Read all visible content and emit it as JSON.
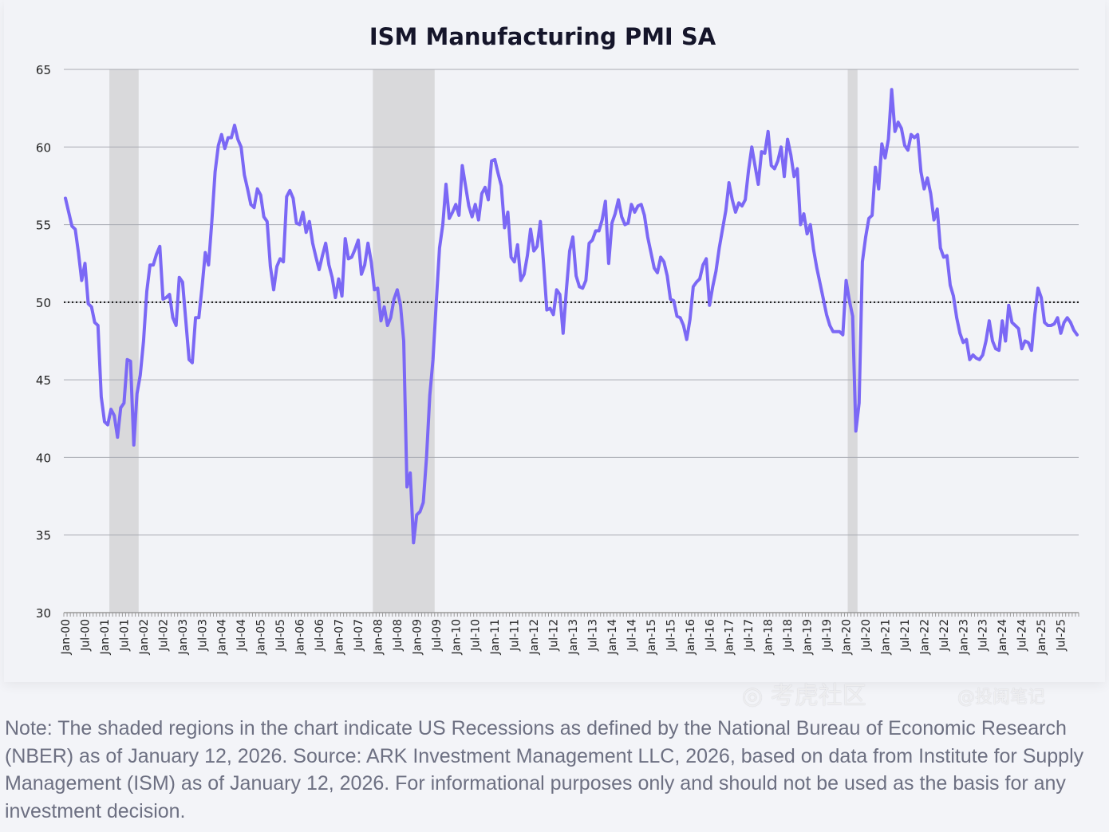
{
  "chart_data": {
    "type": "line",
    "title": "ISM Manufacturing PMI SA",
    "xlabel": "",
    "ylabel": "",
    "ylim": [
      30,
      65
    ],
    "y_ticks": [
      30,
      35,
      40,
      45,
      50,
      55,
      60,
      65
    ],
    "grid": "horizontal",
    "reference_line": {
      "value": 50,
      "style": "dotted"
    },
    "x_tick_labels": [
      "Jan-00",
      "Jul-00",
      "Jan-01",
      "Jul-01",
      "Jan-02",
      "Jul-02",
      "Jan-03",
      "Jul-03",
      "Jan-04",
      "Jul-04",
      "Jan-05",
      "Jul-05",
      "Jan-06",
      "Jul-06",
      "Jan-07",
      "Jul-07",
      "Jan-08",
      "Jul-08",
      "Jan-09",
      "Jul-09",
      "Jan-10",
      "Jul-10",
      "Jan-11",
      "Jul-11",
      "Jan-12",
      "Jul-12",
      "Jan-13",
      "Jul-13",
      "Jan-14",
      "Jul-14",
      "Jan-15",
      "Jul-15",
      "Jan-16",
      "Jul-16",
      "Jan-17",
      "Jul-17",
      "Jan-18",
      "Jul-18",
      "Jan-19",
      "Jul-19",
      "Jan-20",
      "Jul-20",
      "Jan-21",
      "Jul-21",
      "Jan-22",
      "Jul-22",
      "Jan-23",
      "Jul-23",
      "Jan-24",
      "Jul-24",
      "Jan-25",
      "Jul-25"
    ],
    "frequency": "monthly",
    "line_color": "#7b68f5",
    "recession_color": "#d9d9db",
    "recessions": [
      [
        "2001-03",
        "2001-11"
      ],
      [
        "2007-12",
        "2009-06"
      ],
      [
        "2020-02",
        "2020-04"
      ]
    ],
    "values_by_year": {
      "2000": [
        56.7,
        55.8,
        54.9,
        54.7,
        53.2,
        51.4,
        52.5,
        49.9,
        49.7,
        48.7,
        48.5,
        43.9
      ],
      "2001": [
        42.3,
        42.1,
        43.1,
        42.7,
        41.3,
        43.2,
        43.5,
        46.3,
        46.2,
        40.8,
        44.1,
        45.3
      ],
      "2002": [
        47.5,
        50.7,
        52.4,
        52.4,
        53.1,
        53.6,
        50.2,
        50.3,
        50.5,
        49.0,
        48.5,
        51.6
      ],
      "2003": [
        51.3,
        48.8,
        46.3,
        46.1,
        49.0,
        49.0,
        51.0,
        53.2,
        52.4,
        55.2,
        58.4,
        60.1
      ],
      "2004": [
        60.8,
        59.9,
        60.6,
        60.6,
        61.4,
        60.5,
        60.0,
        58.2,
        57.3,
        56.3,
        56.1,
        57.3
      ],
      "2005": [
        56.9,
        55.5,
        55.2,
        52.3,
        50.8,
        52.3,
        52.8,
        52.6,
        56.8,
        57.2,
        56.7,
        55.1
      ],
      "2006": [
        55.0,
        55.8,
        54.5,
        55.2,
        53.8,
        52.9,
        52.1,
        53.0,
        53.8,
        52.4,
        51.6,
        50.3
      ],
      "2007": [
        51.5,
        50.4,
        54.1,
        52.8,
        52.9,
        53.4,
        54.0,
        51.8,
        52.4,
        53.8,
        52.6,
        50.8
      ],
      "2008": [
        50.9,
        48.8,
        49.7,
        48.5,
        49.0,
        50.2,
        50.8,
        49.8,
        47.5,
        38.1,
        39.0,
        34.5
      ],
      "2009": [
        36.3,
        36.5,
        37.1,
        40.0,
        44.0,
        46.3,
        50.0,
        53.5,
        55.0,
        57.6,
        55.4,
        55.8
      ],
      "2010": [
        56.3,
        55.6,
        58.8,
        57.5,
        56.2,
        55.5,
        56.3,
        55.3,
        57.0,
        57.4,
        56.6,
        59.1
      ],
      "2011": [
        59.2,
        58.3,
        57.5,
        54.8,
        55.8,
        52.9,
        52.6,
        53.7,
        51.4,
        51.8,
        53.0,
        54.7
      ],
      "2012": [
        53.3,
        53.6,
        55.2,
        52.5,
        49.5,
        49.6,
        49.2,
        50.8,
        50.5,
        48.0,
        50.8,
        53.3
      ],
      "2013": [
        54.2,
        51.7,
        51.0,
        50.9,
        51.4,
        53.8,
        54.0,
        54.6,
        54.6,
        55.3,
        56.5,
        52.5
      ],
      "2014": [
        55.1,
        55.7,
        56.6,
        55.5,
        55.0,
        55.1,
        56.3,
        55.8,
        56.2,
        56.3,
        55.6,
        54.2
      ],
      "2015": [
        53.2,
        52.2,
        51.9,
        52.9,
        52.6,
        51.7,
        50.2,
        50.1,
        49.1,
        49.0,
        48.5,
        47.6
      ],
      "2016": [
        48.9,
        51.0,
        51.3,
        51.5,
        52.4,
        52.8,
        49.8,
        51.0,
        52.0,
        53.5,
        54.7,
        55.9
      ],
      "2017": [
        57.7,
        56.6,
        55.8,
        56.4,
        56.2,
        56.6,
        58.5,
        60.0,
        58.8,
        57.6,
        59.7,
        59.6
      ],
      "2018": [
        61.0,
        58.8,
        58.6,
        59.1,
        60.0,
        58.1,
        60.5,
        59.5,
        58.1,
        58.6,
        55.0,
        55.7
      ],
      "2019": [
        54.4,
        55.0,
        53.4,
        52.2,
        51.2,
        50.2,
        49.2,
        48.5,
        48.1,
        48.1,
        48.1,
        47.9
      ],
      "2020": [
        51.4,
        50.1,
        49.1,
        41.7,
        43.5,
        52.6,
        54.2,
        55.4,
        55.6,
        58.7,
        57.3,
        60.2
      ],
      "2021": [
        59.3,
        60.5,
        63.7,
        61.0,
        61.6,
        61.2,
        60.1,
        59.8,
        60.8,
        60.6,
        60.8,
        58.4
      ],
      "2022": [
        57.3,
        58.0,
        57.0,
        55.3,
        56.0,
        53.5,
        52.9,
        53.0,
        51.1,
        50.4,
        49.0,
        48.0
      ],
      "2023": [
        47.4,
        47.6,
        46.3,
        46.6,
        46.4,
        46.3,
        46.6,
        47.5,
        48.8,
        47.5,
        47.0,
        46.9
      ],
      "2024": [
        48.8,
        47.5,
        49.8,
        48.7,
        48.5,
        48.3,
        47.0,
        47.5,
        47.4,
        46.9,
        49.2,
        50.9
      ],
      "2025": [
        50.3,
        48.7,
        48.5,
        48.5,
        48.6,
        49.0,
        48.0,
        48.7,
        49.0,
        48.7,
        48.2,
        47.9
      ]
    }
  },
  "note": "Note: The shaded regions in the chart indicate US Recessions as defined by the National Bureau of Economic Research (NBER) as of January 12, 2026. Source: ARK Investment Management LLC, 2026, based on data from Institute for Supply Management (ISM) as of January 12, 2026. For informational purposes only and should not be used as the basis for any investment decision.",
  "watermark": {
    "line1": "考虎社区",
    "line2": "@投阅笔记"
  }
}
